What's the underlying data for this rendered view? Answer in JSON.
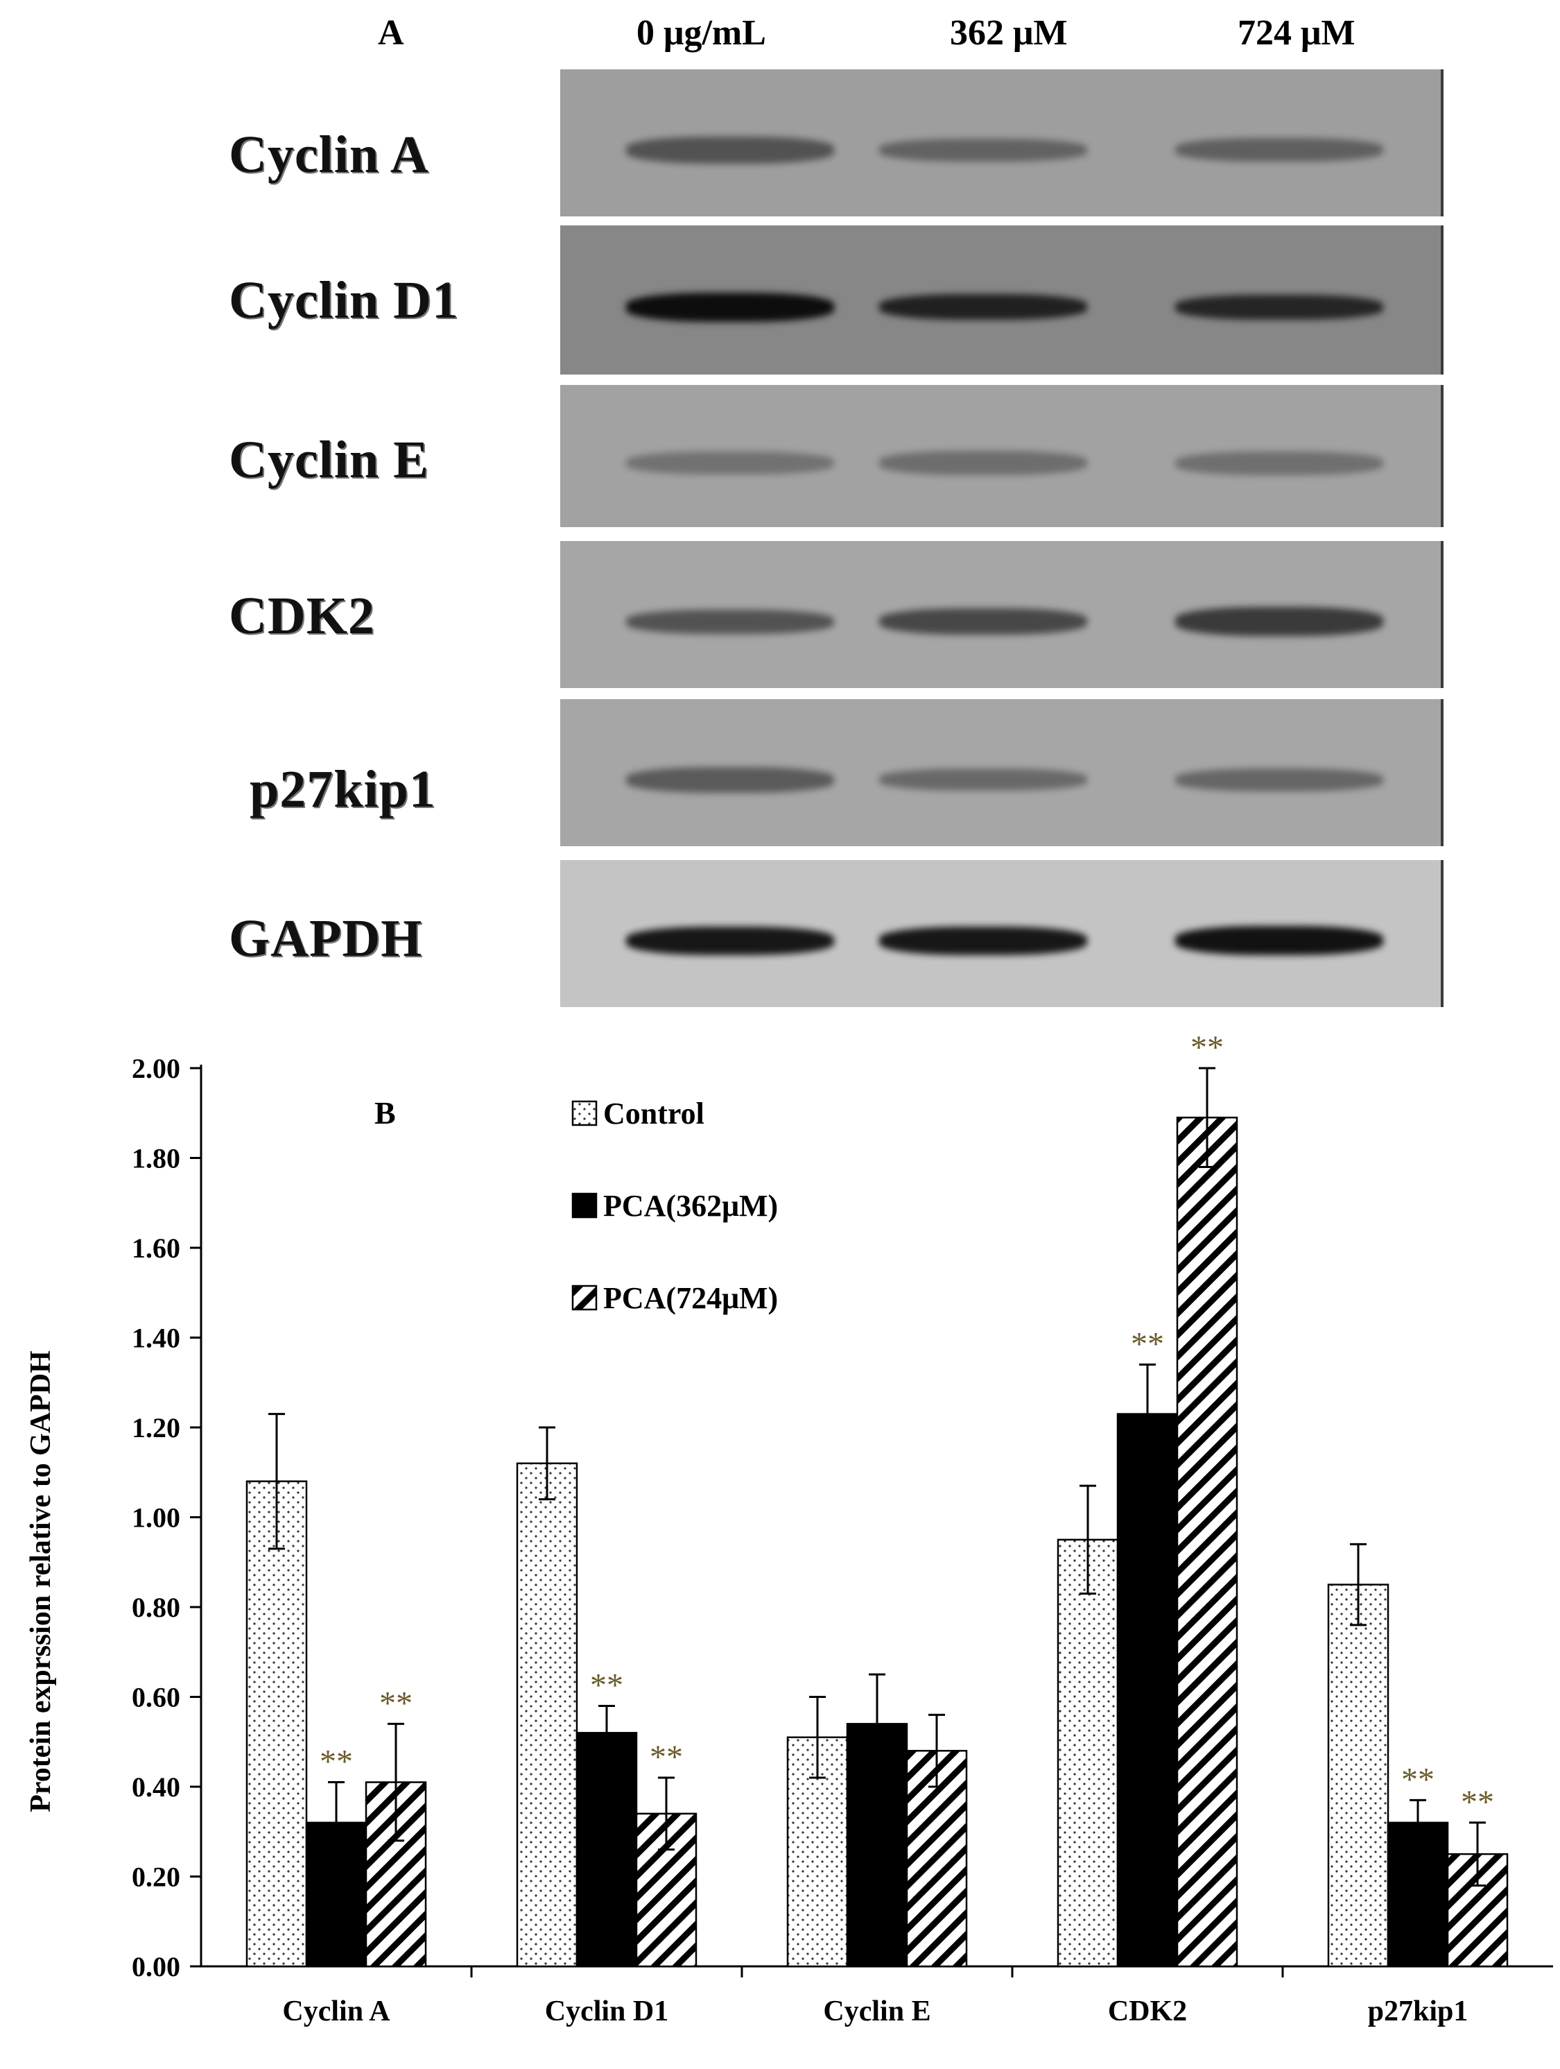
{
  "panel_a": {
    "panel_label": "A",
    "lanes": [
      "0 μg/mL",
      "362 μM",
      "724 μM"
    ],
    "blots": [
      {
        "label": "Cyclin A",
        "bg": "#9e9e9e",
        "band": "#4a4a4a",
        "intensity": [
          0.85,
          0.55,
          0.6
        ]
      },
      {
        "label": "Cyclin D1",
        "bg": "#878787",
        "band": "#0d0d0d",
        "intensity": [
          1.0,
          0.75,
          0.7
        ]
      },
      {
        "label": "Cyclin E",
        "bg": "#a2a2a2",
        "band": "#5e5e5e",
        "intensity": [
          0.55,
          0.65,
          0.6
        ]
      },
      {
        "label": "CDK2",
        "bg": "#a6a6a6",
        "band": "#3a3a3a",
        "intensity": [
          0.65,
          0.8,
          1.0
        ]
      },
      {
        "label": "p27kip1",
        "bg": "#a6a6a6",
        "band": "#4c4c4c",
        "intensity": [
          0.75,
          0.5,
          0.55
        ]
      },
      {
        "label": "GAPDH",
        "bg": "#c4c4c4",
        "band": "#121212",
        "intensity": [
          0.95,
          0.95,
          1.0
        ]
      }
    ]
  },
  "chart_data": {
    "type": "bar",
    "panel_label": "B",
    "ylabel": "Protein exprssion relative to GAPDH",
    "ylim": [
      0,
      2.0
    ],
    "yticks": [
      "0.00",
      "0.20",
      "0.40",
      "0.60",
      "0.80",
      "1.00",
      "1.20",
      "1.40",
      "1.60",
      "1.80",
      "2.00"
    ],
    "categories": [
      "Cyclin A",
      "Cyclin D1",
      "Cyclin E",
      "CDK2",
      "p27kip1"
    ],
    "series": [
      {
        "name": "Control",
        "pattern": "dots",
        "values": [
          1.08,
          1.12,
          0.51,
          0.95,
          0.85
        ],
        "errors": [
          0.15,
          0.08,
          0.09,
          0.12,
          0.09
        ],
        "sig": [
          "",
          "",
          "",
          "",
          ""
        ]
      },
      {
        "name": "PCA(362μM)",
        "pattern": "solid",
        "values": [
          0.32,
          0.52,
          0.54,
          1.23,
          0.32
        ],
        "errors": [
          0.09,
          0.06,
          0.11,
          0.11,
          0.05
        ],
        "sig": [
          "**",
          "**",
          "",
          "**",
          "**"
        ]
      },
      {
        "name": "PCA(724μM)",
        "pattern": "hatch",
        "values": [
          0.41,
          0.34,
          0.48,
          1.89,
          0.25
        ],
        "errors": [
          0.13,
          0.08,
          0.08,
          0.11,
          0.07
        ],
        "sig": [
          "**",
          "**",
          "",
          "**",
          "**"
        ]
      }
    ],
    "legend_position": "top-center",
    "sig_color": "#6b5a2a"
  }
}
